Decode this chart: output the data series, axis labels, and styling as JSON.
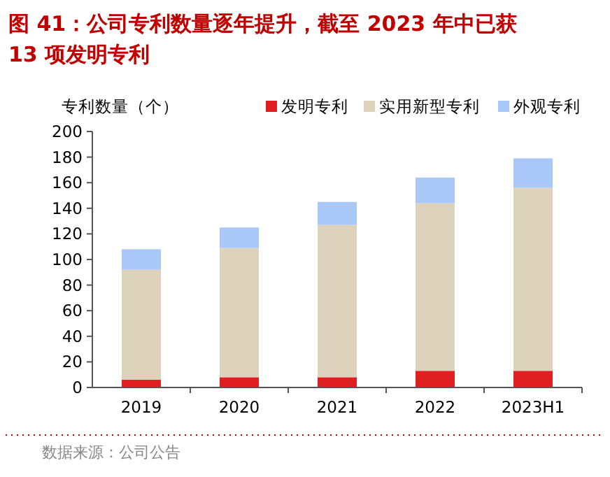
{
  "chart_data": {
    "type": "bar",
    "title": "图 41：公司专利数量逐年提升，截至 2023 年中已获 13 项发明专利",
    "ylabel": "专利数量（个）",
    "categories": [
      "2019",
      "2020",
      "2021",
      "2022",
      "2023H1"
    ],
    "stacked": true,
    "series": [
      {
        "name": "发明专利",
        "color": "#e02020",
        "values": [
          6,
          8,
          8,
          13,
          13
        ]
      },
      {
        "name": "实用新型专利",
        "color": "#ddd3bd",
        "values": [
          86,
          101,
          119,
          131,
          143
        ]
      },
      {
        "name": "外观专利",
        "color": "#a9c8f8",
        "values": [
          16,
          16,
          18,
          20,
          23
        ]
      }
    ],
    "ylim": [
      0,
      200
    ],
    "yticks": [
      0,
      20,
      40,
      60,
      80,
      100,
      120,
      140,
      160,
      180,
      200
    ],
    "legend": "top right",
    "grid": false,
    "annotations": [
      "数据来源：公司公告"
    ]
  }
}
